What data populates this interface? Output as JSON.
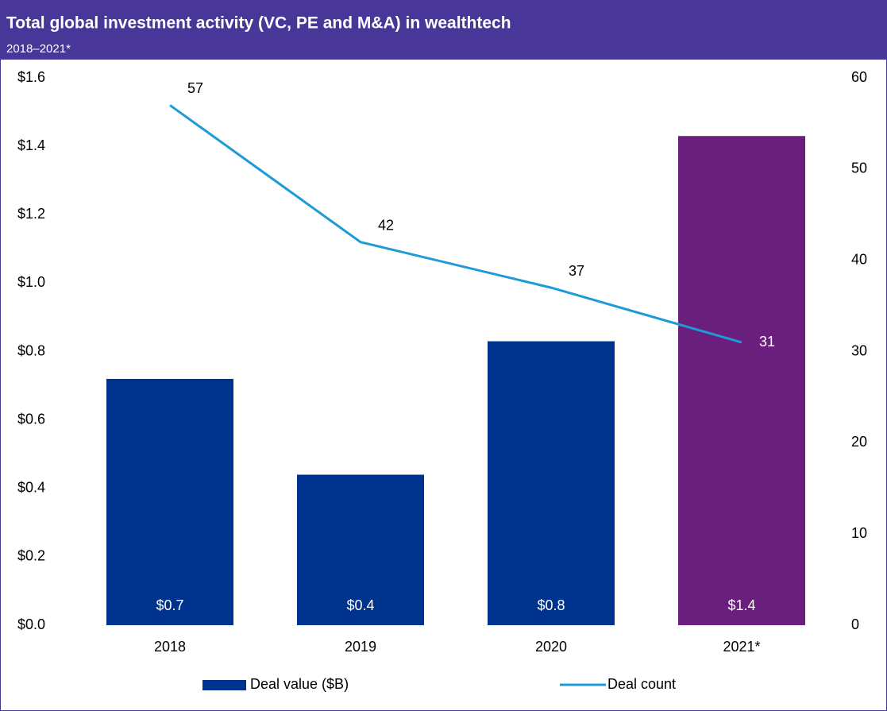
{
  "chart_data": {
    "type": "bar_line",
    "title": "Total global investment activity (VC, PE and M&A) in wealthtech",
    "subtitle": "2018–2021*",
    "categories": [
      "2018",
      "2019",
      "2020",
      "2021*"
    ],
    "series": [
      {
        "name": "Deal value ($B)",
        "type": "bar",
        "color": "#00338d",
        "colors": [
          "#00338d",
          "#00338d",
          "#00338d",
          "#6b1f7c"
        ],
        "values": [
          0.72,
          0.44,
          0.83,
          1.43
        ],
        "value_labels": [
          "$0.7",
          "$0.4",
          "$0.8",
          "$1.4"
        ]
      },
      {
        "name": "Deal count",
        "type": "line",
        "axis": "y2",
        "color": "#1e9bd7",
        "values": [
          57,
          42,
          37,
          31
        ]
      }
    ],
    "ylim": [
      0,
      1.6
    ],
    "yticks": [
      {
        "value": 0,
        "label": "$0.0"
      },
      {
        "value": 0.2,
        "label": "$0.2"
      },
      {
        "value": 0.4,
        "label": "$0.4"
      },
      {
        "value": 0.6,
        "label": "$0.6"
      },
      {
        "value": 0.8,
        "label": "$0.8"
      },
      {
        "value": 1.0,
        "label": "$1.0"
      },
      {
        "value": 1.2,
        "label": "$1.2"
      },
      {
        "value": 1.4,
        "label": "$1.4"
      },
      {
        "value": 1.6,
        "label": "$1.6"
      }
    ],
    "y2lim": [
      0,
      60
    ],
    "y2ticks": [
      0,
      10,
      20,
      30,
      40,
      50,
      60
    ],
    "grid": false,
    "legend": "bottom"
  }
}
